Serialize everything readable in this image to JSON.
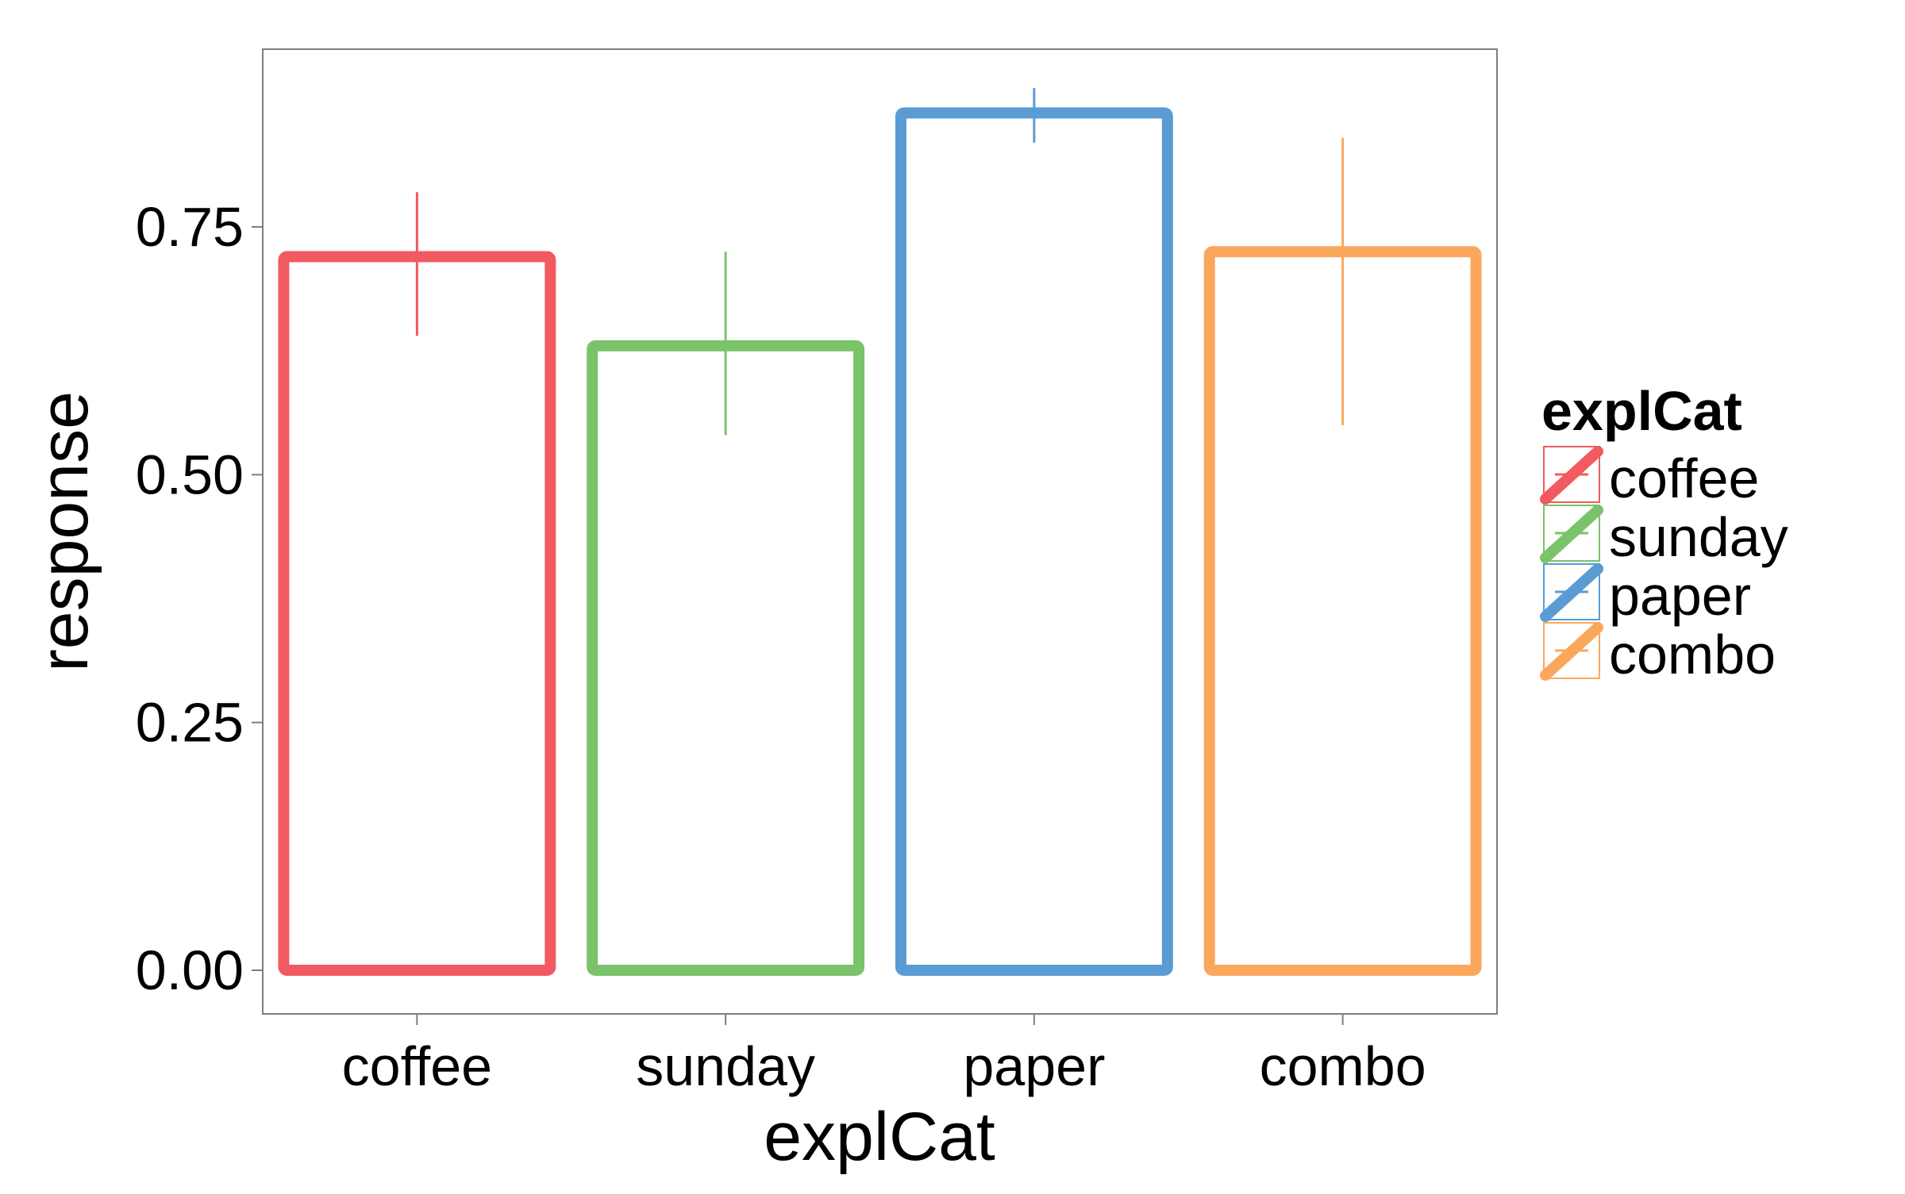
{
  "chart_data": {
    "type": "bar",
    "title": "",
    "xlabel": "explCat",
    "ylabel": "response",
    "categories": [
      "coffee",
      "sunday",
      "paper",
      "combo"
    ],
    "values": [
      0.72,
      0.63,
      0.865,
      0.725
    ],
    "error_low": [
      0.64,
      0.54,
      0.835,
      0.55
    ],
    "error_high": [
      0.785,
      0.725,
      0.89,
      0.84
    ],
    "colors": [
      "#F15A60",
      "#7AC36A",
      "#5A9BD4",
      "#FAA75B"
    ],
    "ylim": [
      0,
      0.92
    ],
    "yticks": [
      0,
      0.25,
      0.5,
      0.75
    ],
    "ytick_labels": [
      "0.00",
      "0.25",
      "0.50",
      "0.75"
    ],
    "grid": false,
    "bar_fill": "none",
    "legend": {
      "title": "explCat",
      "position": "right",
      "entries": [
        "coffee",
        "sunday",
        "paper",
        "combo"
      ]
    }
  }
}
